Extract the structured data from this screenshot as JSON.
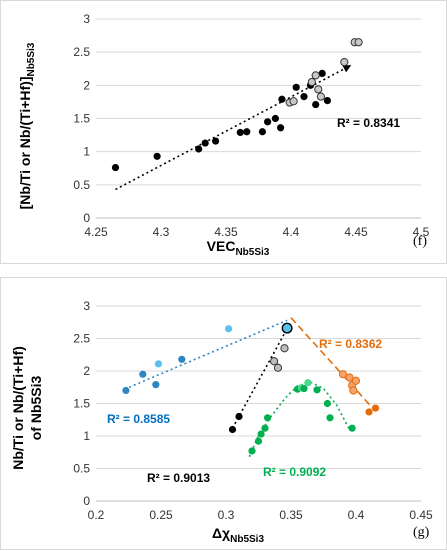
{
  "chart_data": [
    {
      "type": "scatter",
      "panel_label": "(f)",
      "xlabel": "VEC",
      "xlabel_sub": "Nb5Si3",
      "ylabel": "[Nb/Ti or Nb/(Ti+Hf)]",
      "ylabel_sub": "Nb5Si3",
      "xlim": [
        4.25,
        4.5
      ],
      "ylim": [
        0,
        3
      ],
      "xticks": [
        "4.25",
        "4.3",
        "4.35",
        "4.4",
        "4.45",
        "4.5"
      ],
      "yticks": [
        "0",
        "0.5",
        "1",
        "1.5",
        "2",
        "2.5",
        "3"
      ],
      "grid": "horizontal",
      "annotations": [
        {
          "text": "R² = 0.8341",
          "color": "#000000"
        }
      ],
      "trendline": {
        "style": "dotted",
        "color": "#000000",
        "arrow": true,
        "x": [
          4.265,
          4.445
        ],
        "y": [
          0.43,
          2.29
        ]
      },
      "series": [
        {
          "marker": "black-filled",
          "points": [
            [
              4.265,
              0.76
            ],
            [
              4.297,
              0.93
            ],
            [
              4.329,
              1.04
            ],
            [
              4.334,
              1.13
            ],
            [
              4.342,
              1.16
            ],
            [
              4.361,
              1.29
            ],
            [
              4.366,
              1.3
            ],
            [
              4.378,
              1.3
            ],
            [
              4.382,
              1.45
            ],
            [
              4.388,
              1.5
            ],
            [
              4.392,
              1.36
            ],
            [
              4.393,
              1.79
            ],
            [
              4.404,
              1.97
            ],
            [
              4.41,
              1.83
            ],
            [
              4.415,
              2.0
            ],
            [
              4.419,
              1.71
            ],
            [
              4.424,
              2.18
            ],
            [
              4.428,
              1.77
            ]
          ]
        },
        {
          "marker": "grey-outlined",
          "points": [
            [
              4.399,
              1.74
            ],
            [
              4.402,
              1.76
            ],
            [
              4.416,
              2.05
            ],
            [
              4.419,
              2.15
            ],
            [
              4.421,
              1.94
            ],
            [
              4.423,
              1.83
            ],
            [
              4.441,
              2.35
            ],
            [
              4.449,
              2.65
            ],
            [
              4.452,
              2.65
            ]
          ]
        }
      ]
    },
    {
      "type": "scatter",
      "panel_label": "(g)",
      "xlabel": "Δχ",
      "xlabel_sub": "Nb5Si3",
      "ylabel_line1": "Nb/Ti or Nb/(Ti+Hf)",
      "ylabel_line2": "of Nb5Si3",
      "xlim": [
        0.2,
        0.45
      ],
      "ylim": [
        0,
        3
      ],
      "xticks": [
        "0.2",
        "0.25",
        "0.3",
        "0.35",
        "0.4",
        "0.45"
      ],
      "yticks": [
        "0",
        "0.5",
        "1",
        "1.5",
        "2",
        "2.5",
        "3"
      ],
      "grid": "horizontal",
      "annotations": [
        {
          "text": "R² = 0.8362",
          "color": "#e46c0a"
        },
        {
          "text": "R² = 0.8585",
          "color": "#0070c0"
        },
        {
          "text": "R² = 0.9013",
          "color": "#000000"
        },
        {
          "text": "R² = 0.9092",
          "color": "#00b050"
        }
      ],
      "series": [
        {
          "color": "#2e86c1",
          "trend": {
            "style": "dotted",
            "x": [
              0.222,
              0.347
            ],
            "y": [
              1.72,
              2.78
            ]
          },
          "points": [
            [
              0.223,
              1.7
            ],
            [
              0.236,
              1.95
            ],
            [
              0.246,
              1.79
            ],
            [
              0.248,
              2.11
            ],
            [
              0.266,
              2.18
            ],
            [
              0.302,
              2.65
            ],
            [
              0.347,
              2.68
            ]
          ],
          "light_points": [
            [
              0.248,
              2.11
            ],
            [
              0.302,
              2.65
            ],
            [
              0.347,
              2.68
            ]
          ]
        },
        {
          "color": "#000000",
          "trend": {
            "style": "dotted",
            "x": [
              0.305,
              0.347
            ],
            "y": [
              1.12,
              2.65
            ]
          },
          "points": [
            [
              0.305,
              1.1
            ],
            [
              0.31,
              1.3
            ],
            [
              0.337,
              2.15
            ],
            [
              0.34,
              2.05
            ],
            [
              0.345,
              2.35
            ],
            [
              0.347,
              2.65
            ]
          ],
          "grey_points": [
            [
              0.337,
              2.15
            ],
            [
              0.34,
              2.05
            ],
            [
              0.345,
              2.35
            ]
          ]
        },
        {
          "color": "#00b050",
          "trend": {
            "style": "dotted",
            "type": "polynomial",
            "x": [
              0.318,
              0.325,
              0.335,
              0.345,
              0.355,
              0.365,
              0.375,
              0.385,
              0.395
            ],
            "y": [
              0.68,
              1.01,
              1.31,
              1.57,
              1.77,
              1.83,
              1.73,
              1.48,
              1.1
            ]
          },
          "points": [
            [
              0.32,
              0.77
            ],
            [
              0.325,
              0.92
            ],
            [
              0.327,
              1.03
            ],
            [
              0.33,
              1.12
            ],
            [
              0.332,
              1.28
            ],
            [
              0.355,
              1.72
            ],
            [
              0.358,
              1.74
            ],
            [
              0.36,
              1.73
            ],
            [
              0.363,
              1.82
            ],
            [
              0.37,
              1.71
            ],
            [
              0.378,
              1.5
            ],
            [
              0.38,
              1.28
            ],
            [
              0.397,
              1.12
            ]
          ],
          "light_points": [
            [
              0.358,
              1.74
            ],
            [
              0.363,
              1.82
            ]
          ]
        },
        {
          "color": "#e46c0a",
          "trend": {
            "style": "dashed",
            "x": [
              0.35,
              0.415
            ],
            "y": [
              2.82,
              1.38
            ]
          },
          "points": [
            [
              0.39,
              1.95
            ],
            [
              0.395,
              1.9
            ],
            [
              0.397,
              1.78
            ],
            [
              0.398,
              1.7
            ],
            [
              0.4,
              1.85
            ],
            [
              0.41,
              1.37
            ],
            [
              0.415,
              1.43
            ]
          ],
          "light_points": [
            [
              0.39,
              1.95
            ],
            [
              0.395,
              1.9
            ],
            [
              0.397,
              1.78
            ],
            [
              0.398,
              1.7
            ],
            [
              0.4,
              1.85
            ]
          ]
        }
      ]
    }
  ]
}
